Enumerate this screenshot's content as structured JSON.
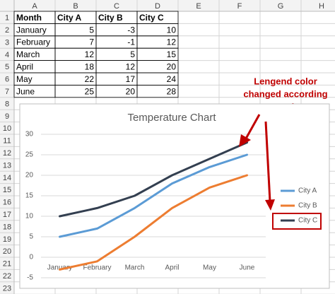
{
  "sheet": {
    "column_headers": [
      "A",
      "B",
      "C",
      "D",
      "E",
      "F",
      "G",
      "H"
    ],
    "row_numbers": [
      1,
      2,
      3,
      4,
      5,
      6,
      7,
      8,
      9,
      10,
      11,
      12,
      13,
      14,
      15,
      16,
      17,
      18,
      19,
      20,
      21,
      22,
      23
    ],
    "table": [
      [
        "Month",
        "City A",
        "City B",
        "City C"
      ],
      [
        "January",
        5,
        -3,
        10
      ],
      [
        "February",
        7,
        -1,
        12
      ],
      [
        "March",
        12,
        5,
        15
      ],
      [
        "April",
        18,
        12,
        20
      ],
      [
        "May",
        22,
        17,
        24
      ],
      [
        "June",
        25,
        20,
        28
      ]
    ]
  },
  "annotation": {
    "lines": [
      "Lengend color",
      "changed according",
      "to series"
    ]
  },
  "chart_data": {
    "type": "line",
    "title": "Temperature Chart",
    "categories": [
      "January",
      "February",
      "March",
      "April",
      "May",
      "June"
    ],
    "series": [
      {
        "name": "City A",
        "color": "#5b9bd5",
        "values": [
          5,
          7,
          12,
          18,
          22,
          25
        ]
      },
      {
        "name": "City B",
        "color": "#ed7d31",
        "values": [
          -3,
          -1,
          5,
          12,
          17,
          20
        ]
      },
      {
        "name": "City C",
        "color": "#333f50",
        "values": [
          10,
          12,
          15,
          20,
          24,
          28
        ]
      }
    ],
    "ylim": [
      -5,
      30
    ],
    "yticks": [
      -5,
      0,
      5,
      10,
      15,
      20,
      25,
      30
    ],
    "grid": true,
    "legend": "right"
  }
}
